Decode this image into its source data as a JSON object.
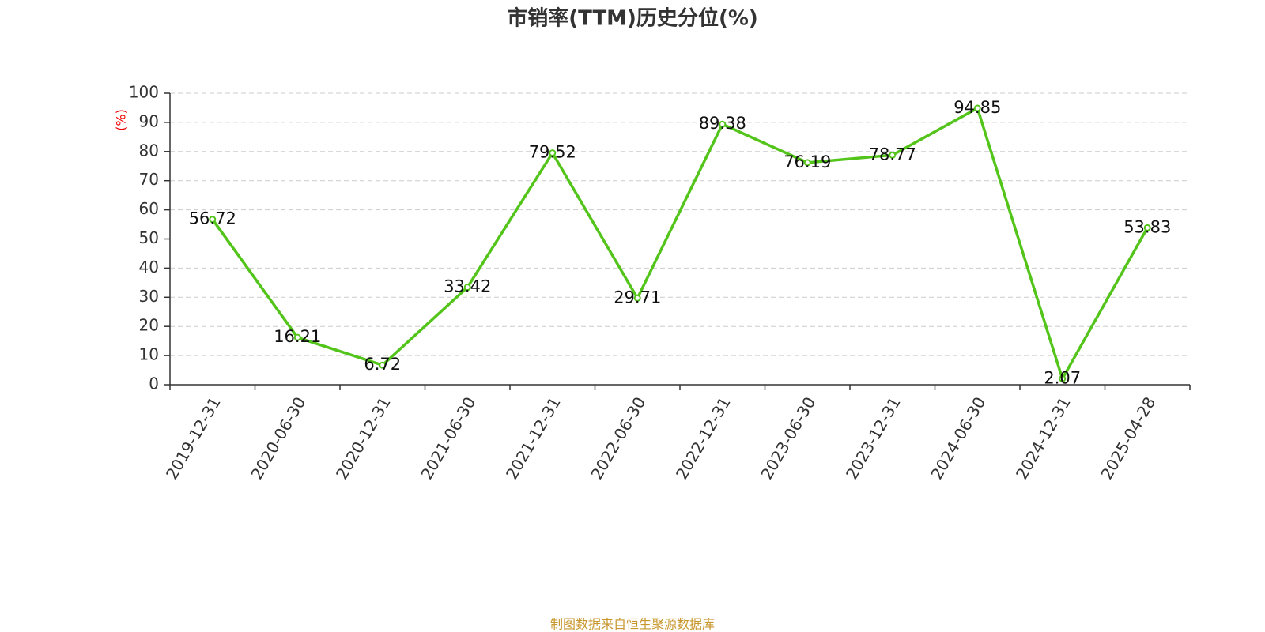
{
  "chart_data": {
    "type": "line",
    "title": "市销率(TTM)历史分位(%)",
    "y_label": "(%)",
    "source": "制图数据来自恒生聚源数据库",
    "categories": [
      "2019-12-31",
      "2020-06-30",
      "2020-12-31",
      "2021-06-30",
      "2021-12-31",
      "2022-06-30",
      "2022-12-31",
      "2023-06-30",
      "2023-12-31",
      "2024-06-30",
      "2024-12-31",
      "2025-04-28"
    ],
    "series": [
      {
        "color": "#52c41a",
        "values": [
          56.72,
          16.21,
          6.72,
          33.42,
          79.52,
          29.71,
          89.38,
          76.19,
          78.77,
          94.85,
          2.07,
          53.83
        ]
      }
    ],
    "ylim": [
      0,
      100
    ],
    "yticks": [
      0,
      10,
      20,
      30,
      40,
      50,
      60,
      70,
      80,
      90,
      100
    ],
    "grid": true
  }
}
